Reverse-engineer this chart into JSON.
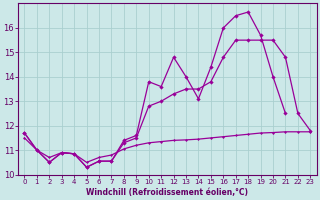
{
  "xlabel": "Windchill (Refroidissement éolien,°C)",
  "background_color": "#cce8e8",
  "grid_color": "#aacfcf",
  "line_color": "#990099",
  "xlim": [
    -0.5,
    23.5
  ],
  "ylim": [
    10,
    17
  ],
  "yticks": [
    10,
    11,
    12,
    13,
    14,
    15,
    16
  ],
  "xticks": [
    0,
    1,
    2,
    3,
    4,
    5,
    6,
    7,
    8,
    9,
    10,
    11,
    12,
    13,
    14,
    15,
    16,
    17,
    18,
    19,
    20,
    21,
    22,
    23
  ],
  "s1_x": [
    0,
    1,
    2,
    3,
    4,
    5,
    6,
    7,
    8,
    9,
    10,
    11,
    12,
    13,
    14,
    15,
    16,
    17,
    18,
    19,
    20,
    21
  ],
  "s1_y": [
    11.7,
    11.0,
    10.5,
    10.9,
    10.85,
    10.3,
    10.55,
    10.55,
    11.4,
    11.6,
    13.8,
    13.6,
    14.8,
    14.0,
    13.1,
    14.4,
    16.0,
    16.5,
    16.65,
    15.7,
    14.0,
    12.5
  ],
  "s2_x": [
    0,
    1,
    2,
    3,
    4,
    5,
    6,
    7,
    8,
    9,
    10,
    11,
    12,
    13,
    14,
    15,
    16,
    17,
    18,
    19,
    20,
    21,
    22,
    23
  ],
  "s2_y": [
    11.7,
    11.0,
    10.5,
    10.9,
    10.85,
    10.3,
    10.55,
    10.55,
    11.3,
    11.5,
    12.8,
    13.0,
    13.3,
    13.5,
    13.5,
    13.8,
    14.8,
    15.5,
    15.5,
    15.5,
    15.5,
    14.8,
    12.5,
    11.8
  ],
  "s3_x": [
    0,
    1,
    2,
    3,
    4,
    5,
    6,
    7,
    8,
    9,
    10,
    11,
    12,
    13,
    14,
    15,
    16,
    17,
    18,
    19,
    20,
    21,
    22,
    23
  ],
  "s3_y": [
    11.5,
    11.0,
    10.7,
    10.9,
    10.85,
    10.5,
    10.7,
    10.8,
    11.05,
    11.2,
    11.3,
    11.35,
    11.4,
    11.42,
    11.45,
    11.5,
    11.55,
    11.6,
    11.65,
    11.7,
    11.72,
    11.75,
    11.75,
    11.75
  ]
}
